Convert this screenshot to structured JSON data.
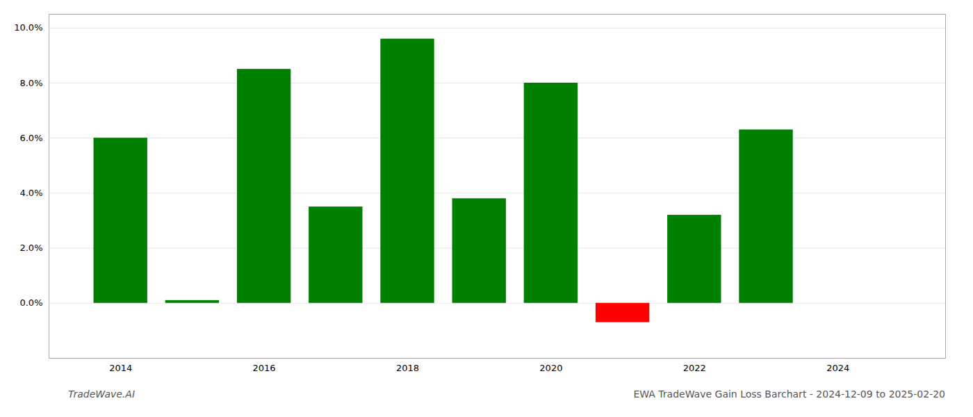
{
  "chart_data": {
    "type": "bar",
    "title": "EWA TradeWave Gain Loss Barchart - 2024-12-09 to 2025-02-20",
    "annotations": [
      "TradeWave.AI"
    ],
    "x": [
      2014,
      2015,
      2016,
      2017,
      2018,
      2019,
      2020,
      2021,
      2022,
      2023
    ],
    "values": [
      0.06,
      0.001,
      0.085,
      0.035,
      0.096,
      0.038,
      0.08,
      -0.007,
      0.032,
      0.063
    ],
    "colors": [
      "#008000",
      "#008000",
      "#008000",
      "#008000",
      "#008000",
      "#008000",
      "#008000",
      "#ff0000",
      "#008000",
      "#008000"
    ],
    "xlim": [
      2013.0,
      2025.5
    ],
    "xticks": [
      2014,
      2016,
      2018,
      2020,
      2022,
      2024
    ],
    "ylim": [
      -0.02,
      0.105
    ],
    "yticks": [
      {
        "value": 0.0,
        "label": "0.0%"
      },
      {
        "value": 0.02,
        "label": "2.0%"
      },
      {
        "value": 0.04,
        "label": "4.0%"
      },
      {
        "value": 0.06,
        "label": "6.0%"
      },
      {
        "value": 0.08,
        "label": "8.0%"
      },
      {
        "value": 0.1,
        "label": "10.0%"
      }
    ],
    "grid": true
  }
}
